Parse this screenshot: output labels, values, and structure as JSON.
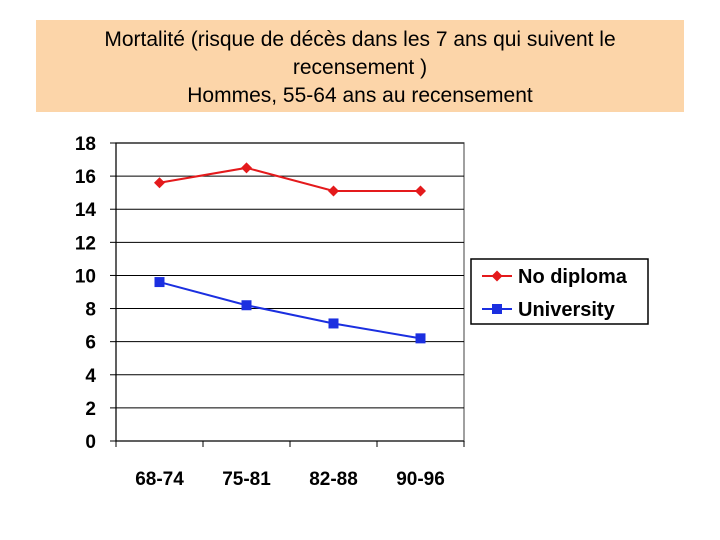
{
  "title": {
    "line1": "Mortalité (risque de décès dans les 7 ans qui suivent le",
    "line2": "recensement )",
    "line3": "Hommes, 55-64 ans au recensement"
  },
  "chart_data": {
    "type": "line",
    "title": "Mortalité (risque de décès dans les 7 ans qui suivent le recensement ) Hommes, 55-64 ans au recensement",
    "xlabel": "",
    "ylabel": "",
    "categories": [
      "68-74",
      "75-81",
      "82-88",
      "90-96"
    ],
    "ylim": [
      0,
      18
    ],
    "yticks": [
      0,
      2,
      4,
      6,
      8,
      10,
      12,
      14,
      16,
      18
    ],
    "grid": true,
    "legend_position": "right",
    "series": [
      {
        "name": "No diploma",
        "values": [
          15.6,
          16.5,
          15.1,
          15.1
        ],
        "color": "#e41a1c",
        "marker": "diamond"
      },
      {
        "name": "University",
        "values": [
          9.6,
          8.2,
          7.1,
          6.2
        ],
        "color": "#1b2fe0",
        "marker": "square"
      }
    ]
  }
}
